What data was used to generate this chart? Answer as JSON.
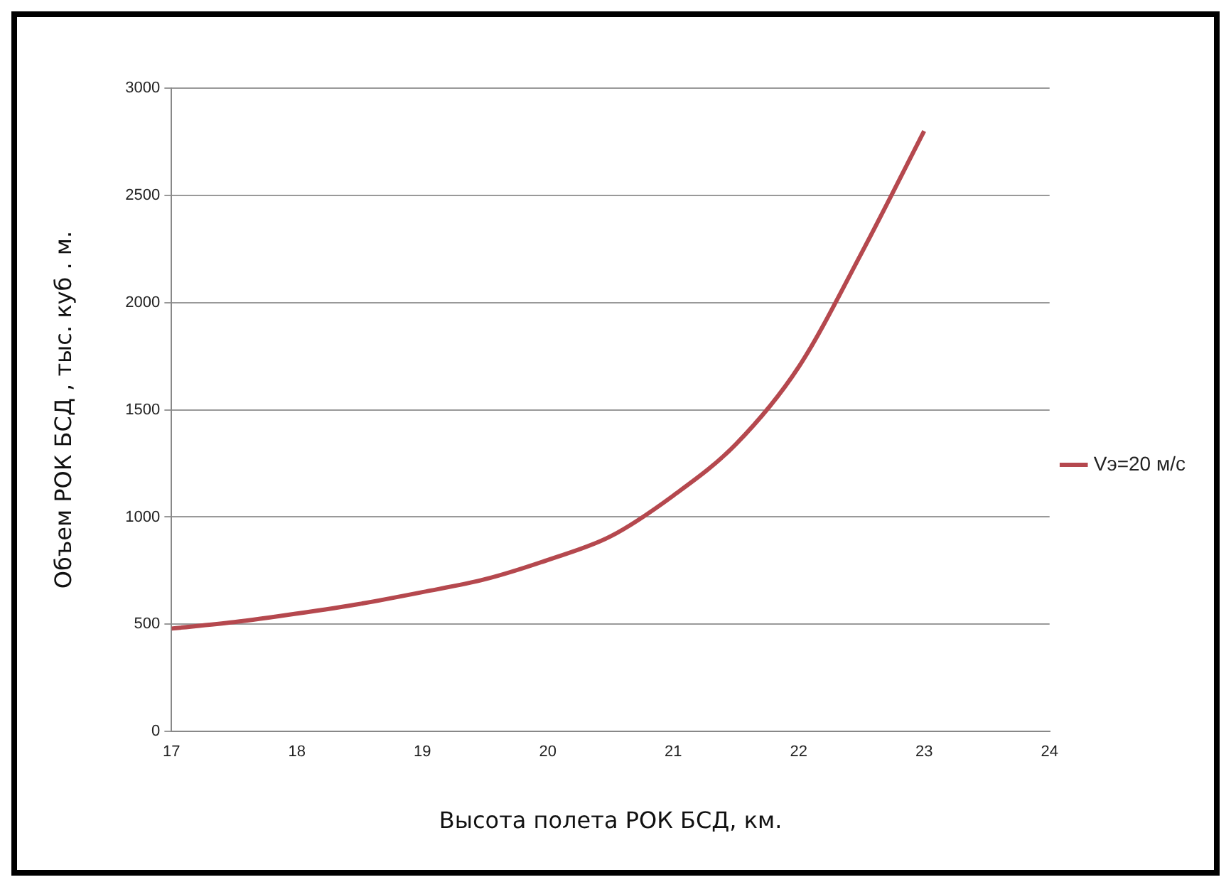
{
  "chart_data": {
    "type": "line",
    "xlabel": "Высота полета РОК БСД, км.",
    "ylabel": "Объем РОК БСД , тыс. куб . м.",
    "x": [
      17,
      17.5,
      18,
      18.5,
      19,
      19.5,
      20,
      20.5,
      21,
      21.5,
      22,
      22.5,
      23
    ],
    "series": [
      {
        "name": "Vэ=20 м/с",
        "color": "#b5484e",
        "values": [
          480,
          510,
          550,
          595,
          650,
          710,
          800,
          910,
          1100,
          1340,
          1700,
          2230,
          2800
        ]
      }
    ],
    "xlim": [
      17,
      24
    ],
    "xticks": [
      17,
      18,
      19,
      20,
      21,
      22,
      23,
      24
    ],
    "ylim": [
      0,
      3000
    ],
    "yticks": [
      0,
      500,
      1000,
      1500,
      2000,
      2500,
      3000
    ],
    "grid": "y",
    "legend": "right",
    "marker": "none",
    "line_style": "solid"
  }
}
